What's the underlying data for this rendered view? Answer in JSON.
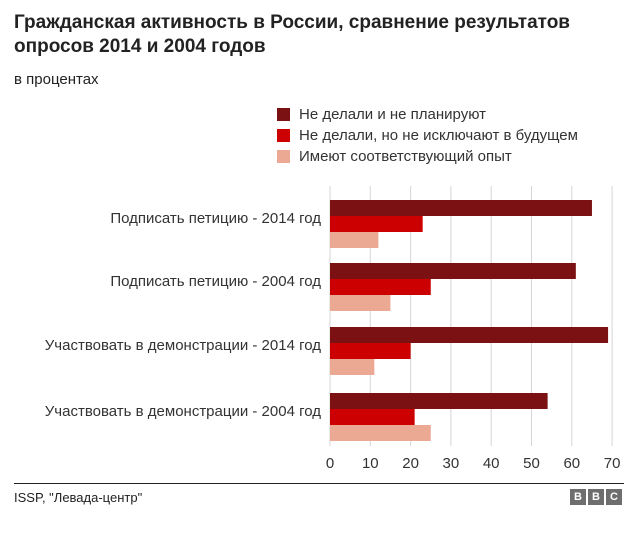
{
  "title": "Гражданская активность в России, сравнение результатов опросов 2014 и 2004 годов",
  "subtitle": "в процентах",
  "source": "ISSP, \"Левада-центр\"",
  "logo": [
    "B",
    "B",
    "C"
  ],
  "colors": {
    "dark": "#7b1113",
    "red": "#cc0000",
    "pink": "#eba893",
    "grid": "#d6d6d6"
  },
  "chart_data": {
    "type": "bar",
    "orientation": "horizontal",
    "categories": [
      "Подписать петицию - 2014 год",
      "Подписать петицию - 2004 год",
      "Участвовать в демонстрации - 2014 год",
      "Участвовать в демонстрации - 2004 год"
    ],
    "series": [
      {
        "name": "Не делали и не планируют",
        "color": "#7b1113",
        "values": [
          65,
          61,
          69,
          54
        ]
      },
      {
        "name": "Не делали, но не исключают в будущем",
        "color": "#cc0000",
        "values": [
          23,
          25,
          20,
          21
        ]
      },
      {
        "name": "Имеют соответствующий опыт",
        "color": "#eba893",
        "values": [
          12,
          15,
          11,
          25
        ]
      }
    ],
    "xlim": [
      0,
      70
    ],
    "xticks": [
      0,
      10,
      20,
      30,
      40,
      50,
      60,
      70
    ],
    "grid": true,
    "legend": "top"
  }
}
